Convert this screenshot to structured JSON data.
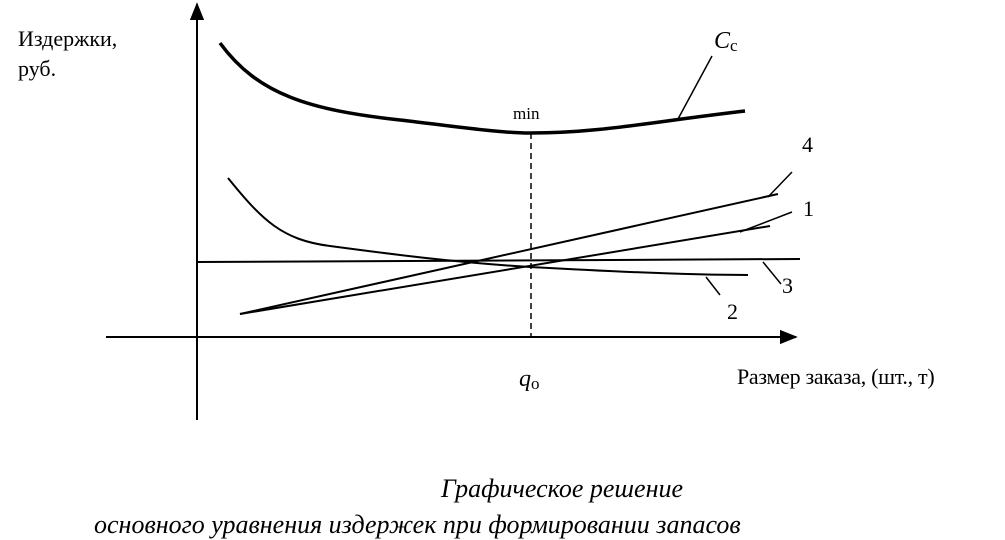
{
  "axes": {
    "y_label_line1": "Издержки,",
    "y_label_line2": "руб.",
    "x_label": "Размер заказа, (шт., т)"
  },
  "curves": {
    "total": {
      "symbol": "C",
      "subscript": "с"
    },
    "labels": [
      "4",
      "1",
      "3",
      "2"
    ]
  },
  "markers": {
    "min_label": "min",
    "optimum_symbol": "q",
    "optimum_subscript": "о"
  },
  "caption": {
    "line1": "Графическое решение",
    "line2": "основного уравнения издержек при формировании запасов"
  },
  "colors": {
    "ink": "#000000",
    "background": "#ffffff"
  }
}
